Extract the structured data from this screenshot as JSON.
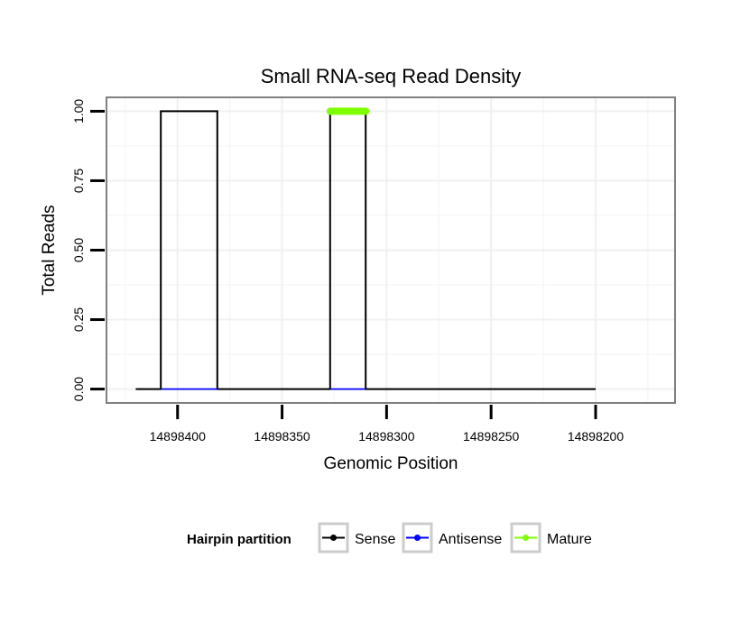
{
  "chart_data": {
    "type": "line",
    "title": "Small RNA-seq Read Density",
    "xlabel": "Genomic Position",
    "ylabel": "Total Reads",
    "xlim": [
      14898434,
      14898162
    ],
    "ylim": [
      -0.05,
      1.05
    ],
    "x_reversed": true,
    "x_ticks": [
      14898400,
      14898350,
      14898300,
      14898250,
      14898200
    ],
    "x_tick_labels": [
      "14898400",
      "14898350",
      "14898300",
      "14898250",
      "14898200"
    ],
    "y_ticks": [
      0,
      0.25,
      0.5,
      0.75,
      1
    ],
    "y_tick_labels": [
      "0.00",
      "0.25",
      "0.50",
      "0.75",
      "1.00"
    ],
    "grid": true,
    "series": [
      {
        "name": "Sense",
        "color": "#000000",
        "x": [
          14898420,
          14898408,
          14898408,
          14898381,
          14898381,
          14898327,
          14898327,
          14898310,
          14898310,
          14898200
        ],
        "y": [
          0,
          0,
          1,
          1,
          0,
          0,
          1,
          1,
          0,
          0
        ]
      },
      {
        "name": "Antisense",
        "color": "#0000ff",
        "x": [
          14898408,
          14898381,
          14898381,
          14898327,
          14898327,
          14898310
        ],
        "y": [
          0,
          0,
          null,
          null,
          0,
          0
        ]
      },
      {
        "name": "Mature",
        "color": "#7fff00",
        "x": [
          14898327,
          14898310
        ],
        "y": [
          1,
          1
        ]
      }
    ],
    "legend": {
      "title": "Hairpin partition",
      "position": "bottom",
      "entries": [
        "Sense",
        "Antisense",
        "Mature"
      ]
    }
  }
}
